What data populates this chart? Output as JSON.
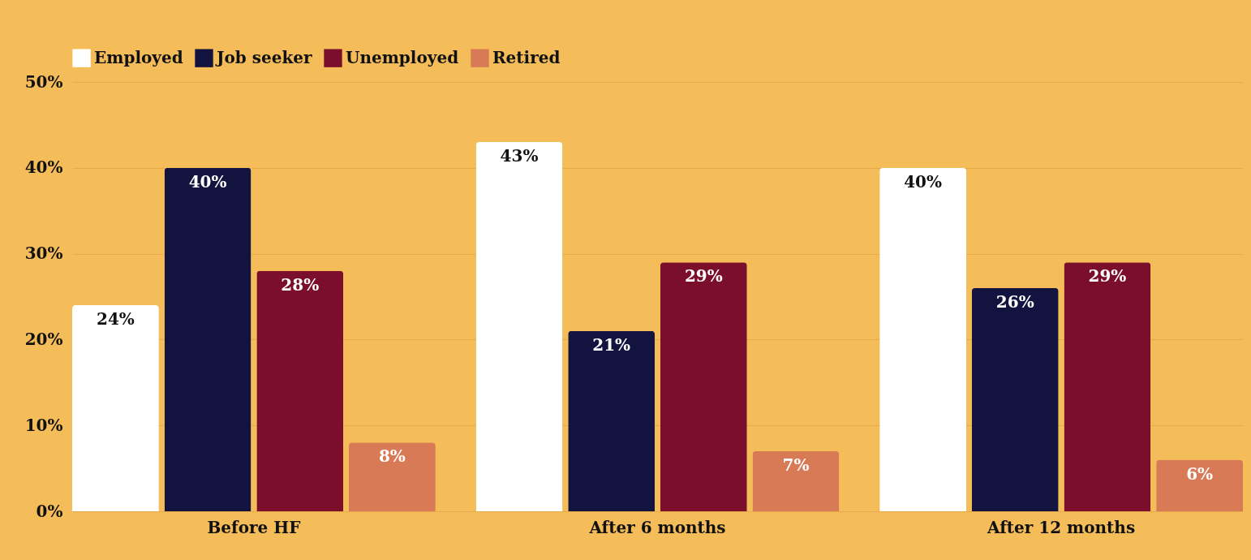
{
  "chart_data": {
    "type": "bar",
    "categories": [
      "Before HF",
      "After 6 months",
      "After 12 months"
    ],
    "series": [
      {
        "name": "Employed",
        "color": "#ffffff",
        "values": [
          24,
          43,
          40
        ],
        "value_labels": [
          "24%",
          "43%",
          "40%"
        ]
      },
      {
        "name": "Job seeker",
        "color": "#12133f",
        "values": [
          40,
          21,
          26
        ],
        "value_labels": [
          "40%",
          "21%",
          "26%"
        ]
      },
      {
        "name": "Unemployed",
        "color": "#7b0f2b",
        "values": [
          28,
          29,
          29
        ],
        "value_labels": [
          "28%",
          "29%",
          "29%"
        ]
      },
      {
        "name": "Retired",
        "color": "#d97a56",
        "values": [
          8,
          7,
          6
        ],
        "value_labels": [
          "8%",
          "7%",
          "6%"
        ]
      }
    ],
    "ylim": [
      0,
      50
    ],
    "yticks": [
      {
        "value": 0,
        "label": "0%"
      },
      {
        "value": 10,
        "label": "10%"
      },
      {
        "value": 20,
        "label": "20%"
      },
      {
        "value": 30,
        "label": "30%"
      },
      {
        "value": 40,
        "label": "40%"
      },
      {
        "value": 50,
        "label": "50%"
      }
    ],
    "grid": "y",
    "legend": "top"
  }
}
